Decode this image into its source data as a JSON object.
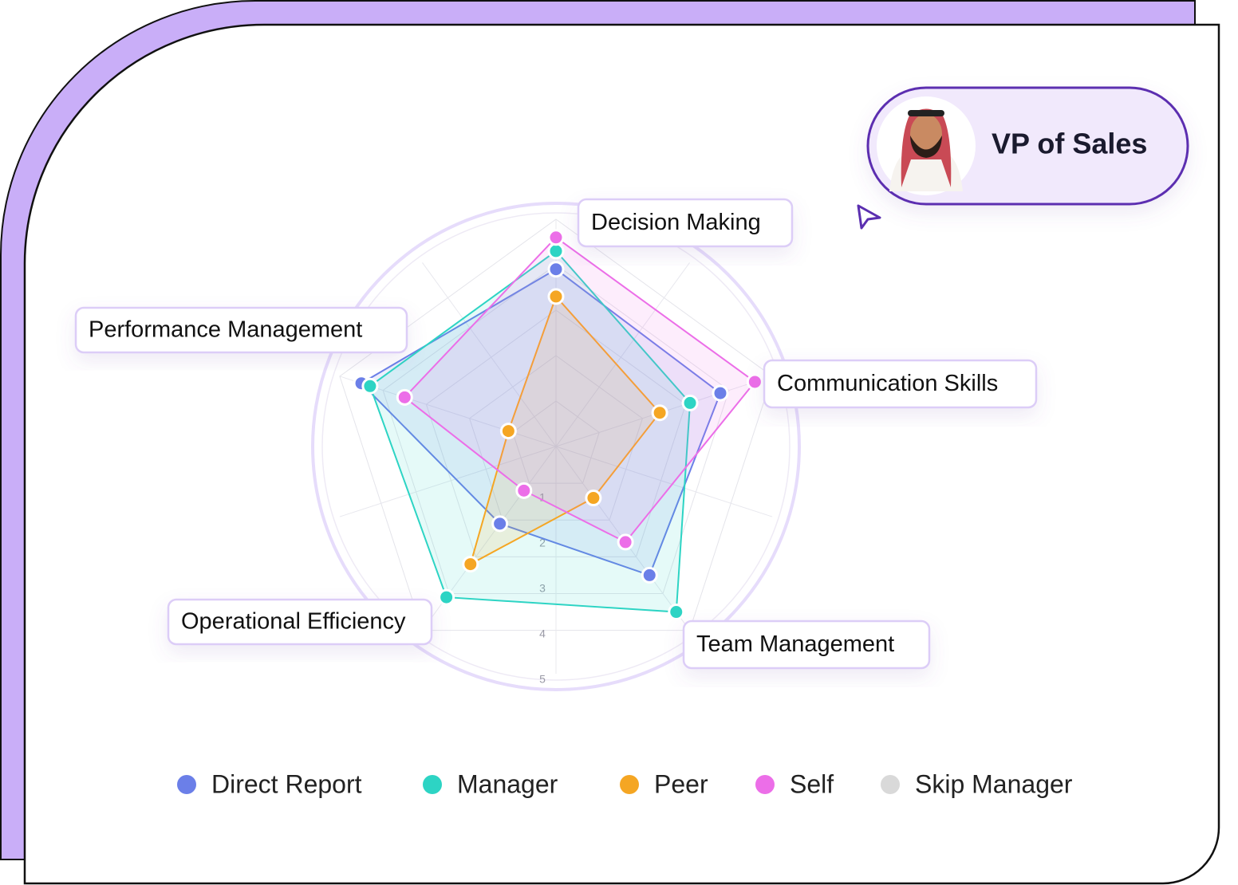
{
  "profile": {
    "title": "VP of Sales"
  },
  "chart_data": {
    "type": "radar",
    "categories": [
      "Decision Making",
      "Communication Skills",
      "Team Management",
      "Operational Efficiency",
      "Performance Management"
    ],
    "series": [
      {
        "name": "Direct Report",
        "color": "#6b7fe8",
        "values": [
          3.9,
          3.8,
          3.5,
          2.1,
          4.5
        ]
      },
      {
        "name": "Manager",
        "color": "#2dd4c4",
        "values": [
          4.3,
          3.1,
          4.5,
          4.1,
          4.3
        ]
      },
      {
        "name": "Peer",
        "color": "#f5a623",
        "values": [
          3.3,
          2.4,
          1.4,
          3.2,
          1.1
        ]
      },
      {
        "name": "Self",
        "color": "#ec6ee8",
        "values": [
          4.6,
          4.6,
          2.6,
          1.2,
          3.5
        ]
      },
      {
        "name": "Skip Manager",
        "color": "#d9d9d9",
        "values": [
          null,
          null,
          null,
          null,
          null
        ]
      }
    ],
    "rlim": [
      0,
      5
    ],
    "rticks": [
      1,
      2,
      3,
      4,
      5
    ],
    "grid": true,
    "legend": "bottom"
  }
}
